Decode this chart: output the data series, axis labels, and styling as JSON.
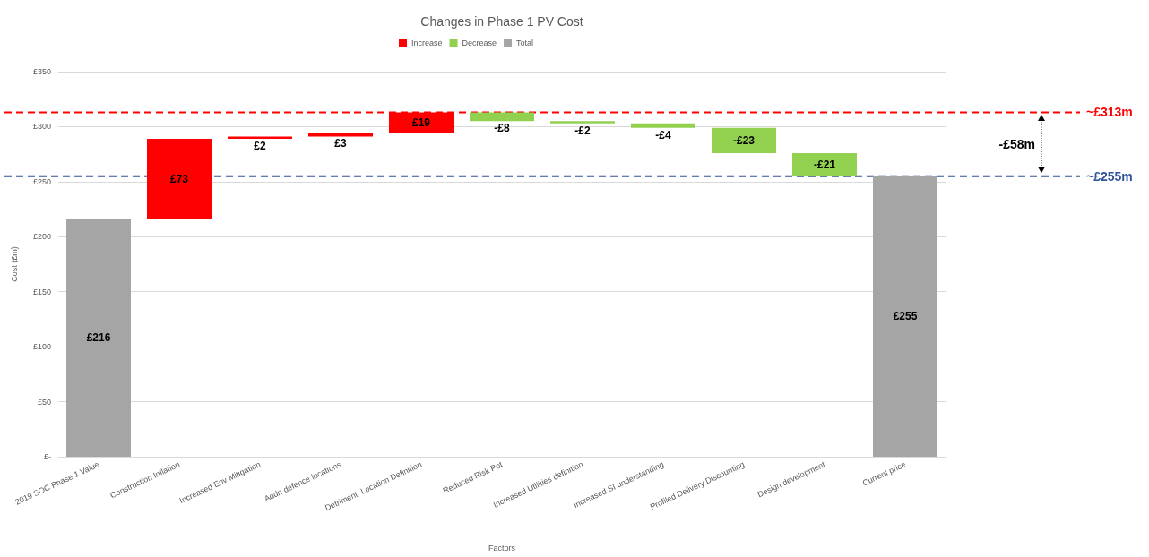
{
  "chart_data": {
    "type": "bar",
    "title": "Changes in Phase 1 PV Cost",
    "xlabel": "Factors",
    "ylabel": "Cost (£m)",
    "categories": [
      "2019 SOC Phase 1 Value",
      "Construction Inflation",
      "Increased Env Mitigation",
      "Addn defence locations",
      "Detriment  Location Definition",
      "Reduced Risk Pot",
      "Increased Utilities definition",
      "Increased SI understanding",
      "Profiled Delivery Discounting",
      "Design development",
      "Current price"
    ],
    "series": [
      {
        "name": "Increase",
        "color": "#ff0000",
        "values": [
          null,
          73,
          2,
          3,
          19,
          null,
          null,
          null,
          null,
          null,
          null
        ],
        "base": [
          null,
          216,
          289,
          291,
          294,
          null,
          null,
          null,
          null,
          null,
          null
        ],
        "value_labels": [
          null,
          "£73",
          "£2",
          "£3",
          "£19",
          null,
          null,
          null,
          null,
          null,
          null
        ]
      },
      {
        "name": "Decrease",
        "color": "#92d050",
        "values": [
          null,
          null,
          null,
          null,
          null,
          -8,
          -2,
          -4,
          -23,
          -21,
          null
        ],
        "base": [
          null,
          null,
          null,
          null,
          null,
          313,
          305,
          303,
          299,
          276,
          null
        ],
        "value_labels": [
          null,
          null,
          null,
          null,
          null,
          "-£8",
          "-£2",
          "-£4",
          "-£23",
          "-£21",
          null
        ]
      },
      {
        "name": "Total",
        "color": "#a5a5a5",
        "values": [
          216,
          null,
          null,
          null,
          null,
          null,
          null,
          null,
          null,
          null,
          255
        ],
        "base": [
          0,
          null,
          null,
          null,
          null,
          null,
          null,
          null,
          null,
          null,
          0
        ],
        "value_labels": [
          "£216",
          null,
          null,
          null,
          null,
          null,
          null,
          null,
          null,
          null,
          "£255"
        ]
      }
    ],
    "ylim": [
      0,
      350
    ],
    "yticks": [
      {
        "value": 0,
        "label": "£-"
      },
      {
        "value": 50,
        "label": "£50"
      },
      {
        "value": 100,
        "label": "£100"
      },
      {
        "value": 150,
        "label": "£150"
      },
      {
        "value": 200,
        "label": "£200"
      },
      {
        "value": 250,
        "label": "£250"
      },
      {
        "value": 300,
        "label": "£300"
      },
      {
        "value": 350,
        "label": "£350"
      }
    ],
    "grid": "y",
    "legend": "top",
    "ref_lines": [
      {
        "axis": "y",
        "value": 313,
        "label": "~£313m",
        "color": "#ff0000",
        "line_style": "dashed"
      },
      {
        "axis": "y",
        "value": 255,
        "label": "~£255m",
        "color": "#2f5597",
        "line_style": "dashed"
      }
    ],
    "annotations": [
      "-£58m"
    ]
  }
}
